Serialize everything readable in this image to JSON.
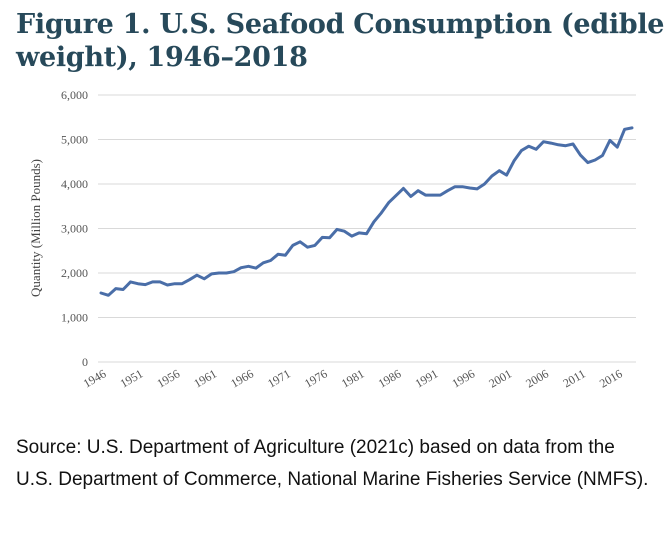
{
  "title": "Figure 1. U.S. Seafood Consumption (edible weight), 1946–2018",
  "source": "Source: U.S. Department of Agriculture (2021c) based on data from the U.S. Department of Commerce, National Marine Fisheries Service (NMFS).",
  "chart_data": {
    "type": "line",
    "title": "Figure 1. U.S. Seafood Consumption (edible weight), 1946–2018",
    "xlabel": "",
    "ylabel": "Quantity (Million Pounds)",
    "ylim": [
      0,
      6000
    ],
    "yticks": [
      "0",
      "1,000",
      "2,000",
      "3,000",
      "4,000",
      "5,000",
      "6,000"
    ],
    "xticks": [
      "1946",
      "1951",
      "1956",
      "1961",
      "1966",
      "1971",
      "1976",
      "1981",
      "1986",
      "1991",
      "1996",
      "2001",
      "2006",
      "2011",
      "2016"
    ],
    "grid": "horizontal",
    "line_color": "#4a6ea8",
    "x": [
      1946,
      1947,
      1948,
      1949,
      1950,
      1951,
      1952,
      1953,
      1954,
      1955,
      1956,
      1957,
      1958,
      1959,
      1960,
      1961,
      1962,
      1963,
      1964,
      1965,
      1966,
      1967,
      1968,
      1969,
      1970,
      1971,
      1972,
      1973,
      1974,
      1975,
      1976,
      1977,
      1978,
      1979,
      1980,
      1981,
      1982,
      1983,
      1984,
      1985,
      1986,
      1987,
      1988,
      1989,
      1990,
      1991,
      1992,
      1993,
      1994,
      1995,
      1996,
      1997,
      1998,
      1999,
      2000,
      2001,
      2002,
      2003,
      2004,
      2005,
      2006,
      2007,
      2008,
      2009,
      2010,
      2011,
      2012,
      2013,
      2014,
      2015,
      2016,
      2017,
      2018
    ],
    "values": [
      1550,
      1500,
      1650,
      1630,
      1800,
      1760,
      1740,
      1800,
      1800,
      1730,
      1760,
      1760,
      1850,
      1950,
      1870,
      1980,
      2000,
      2000,
      2030,
      2120,
      2150,
      2110,
      2230,
      2280,
      2420,
      2400,
      2620,
      2700,
      2580,
      2620,
      2800,
      2790,
      2980,
      2940,
      2830,
      2900,
      2880,
      3150,
      3350,
      3580,
      3740,
      3900,
      3720,
      3850,
      3750,
      3750,
      3750,
      3850,
      3940,
      3940,
      3910,
      3890,
      4000,
      4180,
      4300,
      4200,
      4520,
      4750,
      4850,
      4780,
      4950,
      4920,
      4880,
      4860,
      4900,
      4650,
      4480,
      4540,
      4640,
      4980,
      4830,
      5230,
      5260
    ]
  }
}
